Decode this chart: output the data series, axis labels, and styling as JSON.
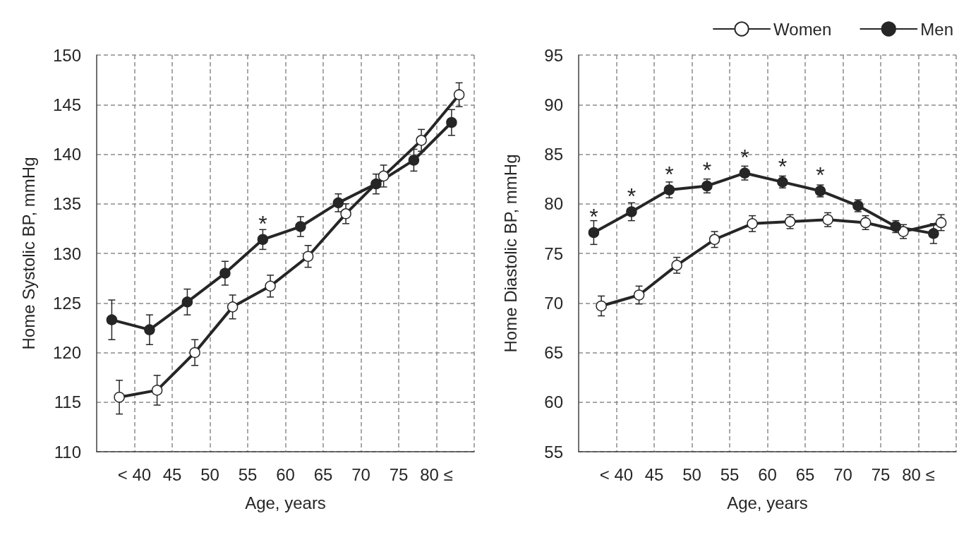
{
  "chart_data": [
    {
      "type": "line",
      "xlabel": "Age, years",
      "ylabel": "Home Systolic BP, mmHg",
      "xlim": [
        35,
        85
      ],
      "xticks": [
        {
          "value": 40,
          "label": "< 40"
        },
        45,
        50,
        55,
        60,
        65,
        70,
        75,
        {
          "value": 80,
          "label": "80 ≤"
        },
        {
          "value": 85,
          "label": null
        }
      ],
      "ylim": [
        110,
        150
      ],
      "yticks": [
        110,
        115,
        120,
        125,
        130,
        135,
        140,
        145,
        150
      ],
      "grid": true,
      "marker": "circle",
      "line_style": "solid",
      "series": [
        {
          "color": "#262626",
          "x": [
            38,
            43,
            48,
            53,
            58,
            63,
            68,
            73,
            78,
            83
          ],
          "values": [
            115.5,
            116.2,
            120.0,
            124.6,
            126.7,
            129.7,
            134.0,
            137.8,
            141.4,
            146.0
          ],
          "errors": [
            1.7,
            1.5,
            1.3,
            1.2,
            1.1,
            1.1,
            1.0,
            1.1,
            1.1,
            1.2
          ]
        },
        {
          "color": "#262626",
          "x": [
            37,
            42,
            47,
            52,
            57,
            62,
            67,
            72,
            77,
            82
          ],
          "values": [
            123.3,
            122.3,
            125.1,
            128.0,
            131.4,
            132.7,
            135.1,
            137.0,
            139.4,
            143.2
          ],
          "errors": [
            2.0,
            1.5,
            1.3,
            1.2,
            1.0,
            1.0,
            0.9,
            1.0,
            1.1,
            1.3
          ]
        }
      ],
      "annotations": [
        {
          "text": "*",
          "x": 57,
          "y": 131.4
        }
      ]
    },
    {
      "type": "line",
      "xlabel": "Age, years",
      "ylabel": "Home Diastolic BP, mmHg",
      "xlim": [
        35,
        85
      ],
      "xticks": [
        {
          "value": 40,
          "label": "< 40"
        },
        45,
        50,
        55,
        60,
        65,
        70,
        75,
        {
          "value": 80,
          "label": "80 ≤"
        },
        {
          "value": 85,
          "label": null
        }
      ],
      "ylim": [
        55,
        95
      ],
      "yticks": [
        55,
        60,
        65,
        70,
        75,
        80,
        85,
        90,
        95
      ],
      "grid": true,
      "marker": "circle",
      "line_style": "solid",
      "legend": "top right",
      "series": [
        {
          "name": "Women",
          "color": "#262626",
          "x": [
            38,
            43,
            48,
            53,
            58,
            63,
            68,
            73,
            78,
            83
          ],
          "values": [
            69.7,
            70.8,
            73.8,
            76.4,
            78.0,
            78.2,
            78.4,
            78.1,
            77.2,
            78.1
          ],
          "errors": [
            1.0,
            0.9,
            0.8,
            0.8,
            0.8,
            0.7,
            0.7,
            0.7,
            0.7,
            0.8
          ]
        },
        {
          "name": "Men",
          "color": "#262626",
          "x": [
            37,
            42,
            47,
            52,
            57,
            62,
            67,
            72,
            77,
            82
          ],
          "values": [
            77.1,
            79.2,
            81.4,
            81.8,
            83.1,
            82.2,
            81.3,
            79.8,
            77.7,
            77.0
          ],
          "errors": [
            1.2,
            0.9,
            0.8,
            0.7,
            0.7,
            0.6,
            0.6,
            0.6,
            0.6,
            1.0
          ]
        }
      ],
      "annotations": [
        {
          "text": "*",
          "x": 37,
          "y": 77.1
        },
        {
          "text": "*",
          "x": 42,
          "y": 79.2
        },
        {
          "text": "*",
          "x": 47,
          "y": 81.4
        },
        {
          "text": "*",
          "x": 52,
          "y": 81.8
        },
        {
          "text": "*",
          "x": 57,
          "y": 83.1
        },
        {
          "text": "*",
          "x": 62,
          "y": 82.2
        },
        {
          "text": "*",
          "x": 67,
          "y": 81.3
        }
      ]
    }
  ]
}
